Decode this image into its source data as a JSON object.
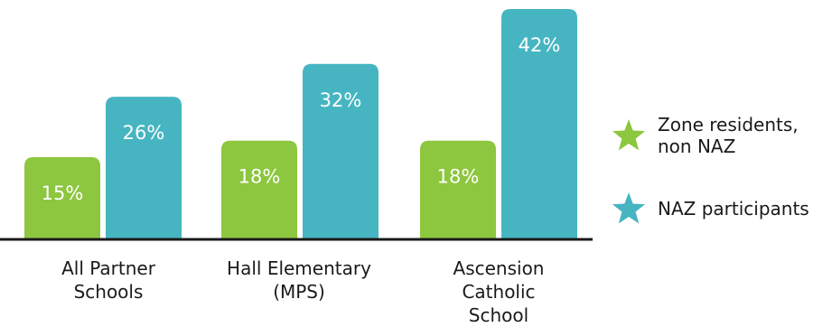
{
  "chart_data": {
    "type": "bar",
    "categories": [
      "All Partner\nSchools",
      "Hall Elementary\n(MPS)",
      "Ascension\nCatholic\nSchool"
    ],
    "series": [
      {
        "name": "Zone residents,\nnon NAZ",
        "values": [
          15,
          18,
          18
        ],
        "labels": [
          "15%",
          "18%",
          "18%"
        ]
      },
      {
        "name": "NAZ participants",
        "values": [
          26,
          32,
          42
        ],
        "labels": [
          "26%",
          "32%",
          "42%"
        ]
      }
    ],
    "ylim": [
      0,
      45
    ],
    "grid": false,
    "legend_position": "right"
  },
  "colors": {
    "series": [
      "#8dc63f",
      "#46b5c1"
    ],
    "axis": "#1a1a1a",
    "value_label": "#ffffff"
  },
  "legend_icon": "star-icon"
}
